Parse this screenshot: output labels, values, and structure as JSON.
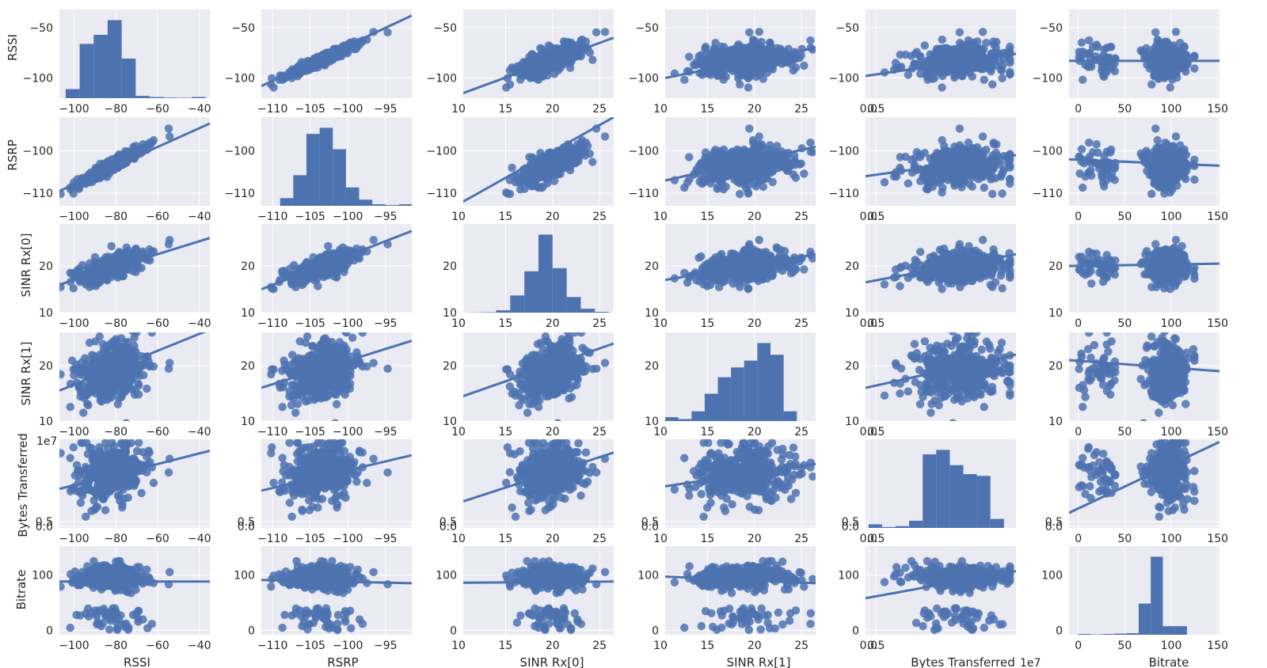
{
  "chart_data": {
    "type": "scatter",
    "variables": [
      {
        "name": "RSSI",
        "label": "RSSI",
        "range": [
          -107,
          -35
        ],
        "ticks": [
          -100,
          -80,
          -60,
          -40
        ],
        "hist": {
          "edges": [
            -104,
            -97.3,
            -90.6,
            -83.9,
            -77.2,
            -70.5,
            -63.8,
            -57.1,
            -50.4,
            -43.7,
            -37
          ],
          "counts": [
            0.08,
            0.48,
            0.56,
            0.69,
            0.35,
            0.02,
            0.01,
            0.005,
            0.003,
            0.01
          ]
        }
      },
      {
        "name": "RSRP",
        "label": "RSRP",
        "range": [
          -111.5,
          -91.5
        ],
        "ticks": [
          -110,
          -105,
          -100,
          -95
        ],
        "hist": {
          "edges": [
            -109,
            -107.25,
            -105.5,
            -103.75,
            -102,
            -100.25,
            -98.5,
            -96.75,
            -95,
            -93.25,
            -91.5
          ],
          "counts": [
            0.05,
            0.2,
            0.47,
            0.51,
            0.37,
            0.12,
            0.04,
            0.01,
            0.005,
            0.01
          ]
        }
      },
      {
        "name": "SINR Rx[0]",
        "label": "SINR Rx[0]",
        "range": [
          10.5,
          26.5
        ],
        "ticks": [
          10,
          15,
          20,
          25
        ],
        "hist": {
          "edges": [
            11,
            12.5,
            14,
            15.5,
            17,
            18.5,
            20,
            21.5,
            23,
            24.5,
            26
          ],
          "counts": [
            0.002,
            0.005,
            0.03,
            0.22,
            0.53,
            1.0,
            0.57,
            0.2,
            0.05,
            0.01
          ]
        }
      },
      {
        "name": "SINR Rx[1]",
        "label": "SINR Rx[1]",
        "range": [
          10.5,
          26.5
        ],
        "ticks": [
          10,
          15,
          20,
          25
        ],
        "hist": {
          "edges": [
            10.5,
            11.9,
            13.3,
            14.7,
            16.1,
            17.5,
            18.9,
            20.3,
            21.7,
            23.1,
            24.5
          ],
          "counts": [
            0.04,
            0.02,
            0.1,
            0.28,
            0.45,
            0.55,
            0.62,
            0.8,
            0.68,
            0.1
          ]
        }
      },
      {
        "name": "Bytes Transferred",
        "label": "Bytes Transferred",
        "range": [
          -0.2,
          9.8
        ],
        "ticks": [
          0.0,
          0.5
        ],
        "scale_note": "1e7",
        "hist": {
          "edges": [
            0.0,
            0.9,
            1.8,
            2.7,
            3.6,
            4.5,
            5.4,
            6.3,
            7.2,
            8.1,
            9.0
          ],
          "counts": [
            0.04,
            0.01,
            0.02,
            0.08,
            0.82,
            0.87,
            0.7,
            0.6,
            0.58,
            0.1
          ]
        }
      },
      {
        "name": "Bitrate",
        "label": "Bitrate",
        "range": [
          -10,
          152
        ],
        "ticks": [
          0,
          50,
          100,
          150
        ],
        "hist": {
          "edges": [
            0,
            13,
            26,
            39,
            52,
            65,
            78,
            91,
            104,
            117,
            130
          ],
          "counts": [
            0.01,
            0.005,
            0.01,
            0.015,
            0.02,
            0.4,
            1.0,
            0.11,
            0.11,
            0.0
          ]
        }
      }
    ],
    "axis_ranges": {
      "RSSI": [
        -120,
        -32
      ],
      "RSRP": [
        -113,
        -92
      ],
      "SINR Rx[0]": [
        10,
        29
      ],
      "SINR Rx[1]": [
        10,
        26
      ],
      "Bytes Transferred": [
        -0.2,
        9.8
      ],
      "Bitrate": [
        -8,
        152
      ]
    },
    "y_ticks": {
      "RSSI": [
        -50,
        -100
      ],
      "RSRP": [
        -100,
        -110
      ],
      "SINR Rx[0]": [
        20,
        10
      ],
      "SINR Rx[1]": [
        20,
        10
      ],
      "Bytes Transferred": [
        0.5,
        0.0
      ],
      "Bitrate": [
        100,
        0
      ]
    },
    "tick_labels": {
      "RSSI": [
        "−100",
        "−80",
        "−60",
        "−40"
      ],
      "RSRP": [
        "−110",
        "−105",
        "−100",
        "−95"
      ],
      "SINR Rx[0]": [
        "10",
        "15",
        "20",
        "25"
      ],
      "SINR Rx[1]": [
        "10",
        "15",
        "20",
        "25"
      ],
      "Bytes Transferred": [
        "0.0",
        "0.5"
      ],
      "Bitrate": [
        "0",
        "50",
        "100",
        "150"
      ],
      "RSSI_y": [
        "−50",
        "−100"
      ],
      "RSRP_y": [
        "−100",
        "−110"
      ],
      "SINR Rx[0]_y": [
        "20",
        "10"
      ],
      "SINR Rx[1]_y": [
        "20",
        "10"
      ],
      "Bytes Transferred_y": [
        "0.5",
        "0.0"
      ],
      "Bitrate_y": [
        "100",
        "0"
      ]
    },
    "regression_lines": [
      {
        "row": 0,
        "col": 1,
        "x": [
          -111.5,
          -91.5
        ],
        "y": [
          -108,
          -38
        ]
      },
      {
        "row": 0,
        "col": 2,
        "x": [
          10.5,
          26.5
        ],
        "y": [
          -115,
          -60
        ]
      },
      {
        "row": 0,
        "col": 3,
        "x": [
          10.5,
          26.5
        ],
        "y": [
          -100,
          -70
        ]
      },
      {
        "row": 0,
        "col": 4,
        "x": [
          -0.2,
          9.8
        ],
        "y": [
          -98,
          -76
        ]
      },
      {
        "row": 0,
        "col": 5,
        "x": [
          -10,
          152
        ],
        "y": [
          -83,
          -83
        ]
      },
      {
        "row": 1,
        "col": 0,
        "x": [
          -107,
          -35
        ],
        "y": [
          -109.5,
          -93.5
        ]
      },
      {
        "row": 1,
        "col": 2,
        "x": [
          10.5,
          26.5
        ],
        "y": [
          -112,
          -92
        ]
      },
      {
        "row": 1,
        "col": 3,
        "x": [
          10.5,
          26.5
        ],
        "y": [
          -107,
          -99
        ]
      },
      {
        "row": 1,
        "col": 4,
        "x": [
          -0.2,
          9.8
        ],
        "y": [
          -106,
          -101
        ]
      },
      {
        "row": 1,
        "col": 5,
        "x": [
          -10,
          152
        ],
        "y": [
          -102,
          -103.5
        ]
      },
      {
        "row": 2,
        "col": 0,
        "x": [
          -107,
          -35
        ],
        "y": [
          16,
          26
        ]
      },
      {
        "row": 2,
        "col": 1,
        "x": [
          -111.5,
          -91.5
        ],
        "y": [
          15,
          27.5
        ]
      },
      {
        "row": 2,
        "col": 3,
        "x": [
          10.5,
          26.5
        ],
        "y": [
          17,
          22.5
        ]
      },
      {
        "row": 2,
        "col": 4,
        "x": [
          -0.2,
          9.8
        ],
        "y": [
          16.5,
          22.5
        ]
      },
      {
        "row": 2,
        "col": 5,
        "x": [
          -10,
          152
        ],
        "y": [
          20,
          20.5
        ]
      },
      {
        "row": 3,
        "col": 0,
        "x": [
          -107,
          -35
        ],
        "y": [
          15.5,
          26.5
        ]
      },
      {
        "row": 3,
        "col": 1,
        "x": [
          -111.5,
          -91.5
        ],
        "y": [
          16,
          24.5
        ]
      },
      {
        "row": 3,
        "col": 2,
        "x": [
          10.5,
          26.5
        ],
        "y": [
          14.5,
          24
        ]
      },
      {
        "row": 3,
        "col": 4,
        "x": [
          -0.2,
          9.8
        ],
        "y": [
          16,
          22
        ]
      },
      {
        "row": 3,
        "col": 5,
        "x": [
          -10,
          152
        ],
        "y": [
          21,
          19
        ]
      },
      {
        "row": 4,
        "col": 0,
        "x": [
          -107,
          -35
        ],
        "y": [
          4.2,
          8.5
        ]
      },
      {
        "row": 4,
        "col": 1,
        "x": [
          -111.5,
          -91.5
        ],
        "y": [
          4.0,
          8.0
        ]
      },
      {
        "row": 4,
        "col": 2,
        "x": [
          10.5,
          26.5
        ],
        "y": [
          2.8,
          8.3
        ]
      },
      {
        "row": 4,
        "col": 3,
        "x": [
          10.5,
          26.5
        ],
        "y": [
          4.5,
          7.0
        ]
      },
      {
        "row": 4,
        "col": 5,
        "x": [
          -10,
          152
        ],
        "y": [
          1.5,
          9.5
        ]
      },
      {
        "row": 5,
        "col": 0,
        "x": [
          -107,
          -35
        ],
        "y": [
          88,
          88
        ]
      },
      {
        "row": 5,
        "col": 1,
        "x": [
          -111.5,
          -91.5
        ],
        "y": [
          91,
          85
        ]
      },
      {
        "row": 5,
        "col": 2,
        "x": [
          10.5,
          26.5
        ],
        "y": [
          86,
          88
        ]
      },
      {
        "row": 5,
        "col": 3,
        "x": [
          10.5,
          26.5
        ],
        "y": [
          97,
          85
        ]
      },
      {
        "row": 5,
        "col": 4,
        "x": [
          -0.2,
          9.8
        ],
        "y": [
          58,
          107
        ]
      }
    ],
    "title": "",
    "grid": true,
    "legend": "none",
    "style": {
      "background": "#eaeaf2",
      "marker": "#4c72b0",
      "grid": "#ffffff"
    }
  },
  "labels": {
    "row_RSSI": "RSSI",
    "row_RSRP": "RSRP",
    "row_SINR0": "SINR Rx[0]",
    "row_SINR1": "SINR Rx[1]",
    "row_Bytes": "Bytes Transferred",
    "row_Bitrate": "Bitrate",
    "col_RSSI": "RSSI",
    "col_RSRP": "RSRP",
    "col_SINR0": "SINR Rx[0]",
    "col_SINR1": "SINR Rx[1]",
    "col_Bytes": "Bytes Transferred",
    "col_Bytes_scale": "1e7",
    "col_Bitrate": "Bitrate",
    "row_Bytes_scale": "1e7"
  }
}
